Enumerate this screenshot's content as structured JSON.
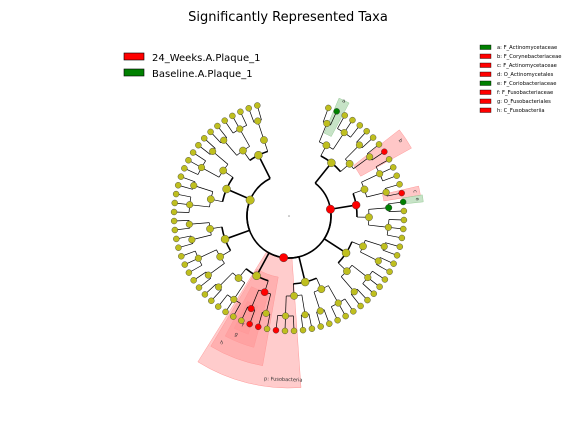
{
  "title": "Significantly Represented Taxa",
  "legend": [
    {
      "label": "24_Weeks.A.Plaque_1",
      "color": "#ff0000"
    },
    {
      "label": "Baseline.A.Plaque_1",
      "color": "#008000"
    }
  ],
  "key": [
    {
      "text": "a: F_Actinomycetaceae",
      "color": "#008000"
    },
    {
      "text": "b: F_Corynebacteriaceae",
      "color": "#ff0000"
    },
    {
      "text": "c: F_Actinomycetaceae",
      "color": "#ff0000"
    },
    {
      "text": "d: O_Actinomycetales",
      "color": "#ff0000"
    },
    {
      "text": "e: F_Coriobacteriaceae",
      "color": "#008000"
    },
    {
      "text": "f: F_Fusobacteriaceae",
      "color": "#ff0000"
    },
    {
      "text": "g: O_Fusobacteriales",
      "color": "#ff0000"
    },
    {
      "text": "h: C_Fusobacteriia",
      "color": "#ff0000"
    }
  ],
  "clade_labels": {
    "a": "a",
    "b": "b",
    "c": "c",
    "d": "d",
    "e": "e",
    "f": "f",
    "g": "g",
    "h": "h",
    "phylum": "p: Fusobacteria"
  },
  "colors": {
    "node_default": "#bfbf1f",
    "red": "#ff0000",
    "green": "#008000",
    "red_shade": "#ff9999",
    "green_shade": "#99cc99"
  }
}
